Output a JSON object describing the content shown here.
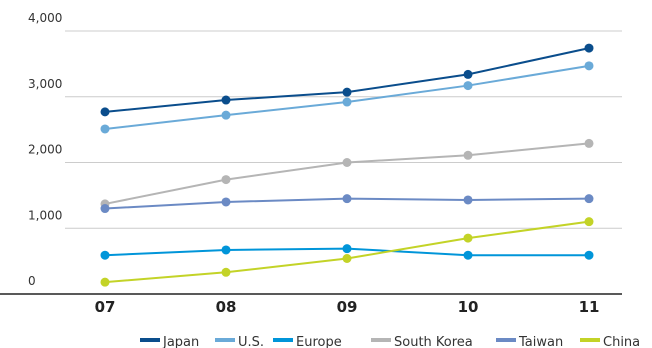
{
  "chart_data": {
    "type": "line",
    "x": [
      "07",
      "08",
      "09",
      "10",
      "11"
    ],
    "ylim": [
      0,
      4000
    ],
    "yticks": [
      0,
      1000,
      2000,
      3000,
      4000
    ],
    "ytick_labels": [
      "0",
      "1,000",
      "2,000",
      "3,000",
      "4,000"
    ],
    "grid": true,
    "legend_position": "bottom-right",
    "series": [
      {
        "name": "Japan",
        "color": "#0a4d8c",
        "values": [
          2770,
          2950,
          3070,
          3340,
          3740
        ]
      },
      {
        "name": "U.S.",
        "color": "#6aaad8",
        "values": [
          2510,
          2720,
          2920,
          3170,
          3470
        ]
      },
      {
        "name": "Europe",
        "color": "#0095d9",
        "values": [
          590,
          670,
          690,
          590,
          590
        ]
      },
      {
        "name": "South Korea",
        "color": "#b5b5b5",
        "values": [
          1370,
          1740,
          2000,
          2110,
          2290
        ]
      },
      {
        "name": "Taiwan",
        "color": "#6b8ac4",
        "values": [
          1300,
          1400,
          1450,
          1430,
          1450
        ]
      },
      {
        "name": "China",
        "color": "#c3d327",
        "values": [
          180,
          330,
          540,
          850,
          1100
        ]
      }
    ]
  }
}
